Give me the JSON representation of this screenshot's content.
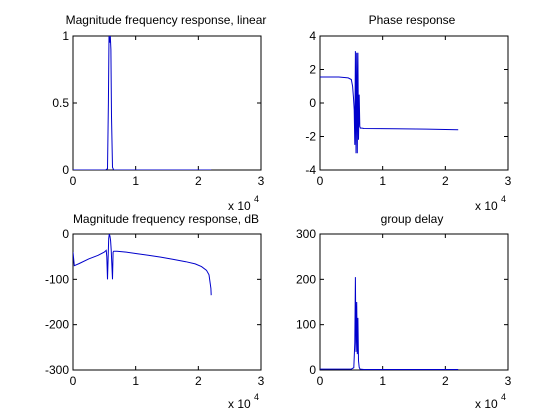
{
  "figure": {
    "line_color": "#0000cc",
    "axes_color": "#000000"
  },
  "chart_data": [
    {
      "type": "line",
      "title": "Magnitude frequency response, linear",
      "xlim": [
        0,
        30000
      ],
      "ylim": [
        0,
        1
      ],
      "xticks": [
        0,
        10000,
        20000,
        30000
      ],
      "xtick_labels": [
        "0",
        "1",
        "2",
        "3"
      ],
      "yticks": [
        0,
        0.5,
        1
      ],
      "ytick_labels": [
        "0",
        "0.5",
        "1"
      ],
      "x_multiplier": "x 10",
      "x_multiplier_exp": "4",
      "series": [
        {
          "x": [
            0,
            5200,
            5500,
            5650,
            5750,
            5850,
            5950,
            6050,
            6150,
            6300,
            6500,
            8000,
            15000,
            22050
          ],
          "y": [
            0,
            0,
            0.01,
            0.5,
            1,
            0.95,
            1,
            0.9,
            0.4,
            0.02,
            0,
            0,
            0,
            0
          ]
        }
      ]
    },
    {
      "type": "line",
      "title": "Phase response",
      "xlim": [
        0,
        30000
      ],
      "ylim": [
        -4,
        4
      ],
      "xticks": [
        0,
        10000,
        20000,
        30000
      ],
      "xtick_labels": [
        "0",
        "1",
        "2",
        "3"
      ],
      "yticks": [
        -4,
        -2,
        0,
        2,
        4
      ],
      "ytick_labels": [
        "-4",
        "-2",
        "0",
        "2",
        "4"
      ],
      "x_multiplier": "x 10",
      "x_multiplier_exp": "4",
      "series": [
        {
          "x": [
            0,
            3000,
            4500,
            5000,
            5200,
            5350,
            5450,
            5550,
            5650,
            5750,
            5850,
            5950,
            6050,
            6150,
            6250,
            6350,
            6450,
            6700,
            7000,
            12000,
            17000,
            22050
          ],
          "y": [
            1.55,
            1.55,
            1.5,
            1.4,
            1.0,
            0.3,
            -0.4,
            -2.5,
            3.1,
            -3.0,
            3.0,
            -3.0,
            3.0,
            -2.2,
            0.5,
            -1.4,
            -1.5,
            -1.5,
            -1.52,
            -1.54,
            -1.56,
            -1.6
          ]
        }
      ]
    },
    {
      "type": "line",
      "title": "Magnitude frequency response, dB",
      "xlim": [
        0,
        30000
      ],
      "ylim": [
        -300,
        0
      ],
      "xticks": [
        0,
        10000,
        20000,
        30000
      ],
      "xtick_labels": [
        "0",
        "1",
        "2",
        "3"
      ],
      "yticks": [
        -300,
        -200,
        -100,
        0
      ],
      "ytick_labels": [
        "-300",
        "-200",
        "-100",
        "0"
      ],
      "x_multiplier": "x 10",
      "x_multiplier_exp": "4",
      "series": [
        {
          "x": [
            0,
            200,
            1000,
            2500,
            4000,
            5000,
            5300,
            5400,
            5500,
            5700,
            5800,
            5900,
            6000,
            6100,
            6300,
            6400,
            6500,
            7000,
            8500,
            10000,
            12000,
            14000,
            16000,
            18000,
            19500,
            20500,
            21300,
            21700,
            22000,
            22050
          ],
          "y": [
            -40,
            -70,
            -65,
            -55,
            -47,
            -40,
            -36,
            -50,
            -100,
            -10,
            0,
            -5,
            -15,
            -35,
            -100,
            -40,
            -38,
            -38,
            -40,
            -43,
            -47,
            -51,
            -56,
            -61,
            -66,
            -72,
            -80,
            -90,
            -120,
            -135
          ]
        }
      ]
    },
    {
      "type": "line",
      "title": "group delay",
      "xlim": [
        0,
        30000
      ],
      "ylim": [
        0,
        300
      ],
      "xticks": [
        0,
        10000,
        20000,
        30000
      ],
      "xtick_labels": [
        "0",
        "1",
        "2",
        "3"
      ],
      "yticks": [
        0,
        100,
        200,
        300
      ],
      "ytick_labels": [
        "0",
        "100",
        "200",
        "300"
      ],
      "x_multiplier": "x 10",
      "x_multiplier_exp": "4",
      "series": [
        {
          "x": [
            0,
            5000,
            5400,
            5550,
            5650,
            5750,
            5850,
            5950,
            6050,
            6150,
            6250,
            6400,
            7000,
            22050
          ],
          "y": [
            2,
            2,
            5,
            60,
            205,
            40,
            150,
            35,
            115,
            20,
            6,
            2,
            1,
            1
          ]
        }
      ]
    }
  ]
}
